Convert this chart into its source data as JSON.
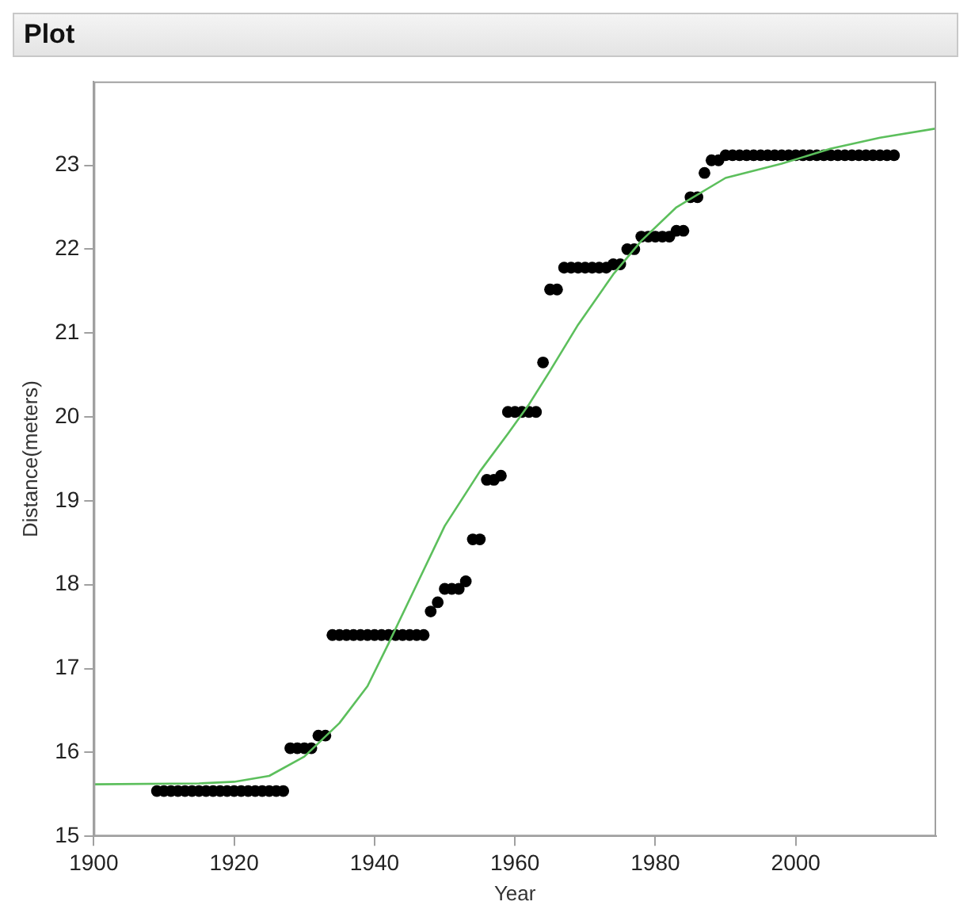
{
  "chart_data": {
    "type": "scatter",
    "title": "Plot",
    "xlabel": "Year",
    "ylabel": "Distance(meters)",
    "xlim": [
      1900,
      2020
    ],
    "xticks": [
      1900,
      1920,
      1940,
      1960,
      1980,
      2000
    ],
    "ylim": [
      15,
      24
    ],
    "yticks": [
      15,
      16,
      17,
      18,
      19,
      20,
      21,
      22,
      23
    ],
    "grid": false,
    "legend": false,
    "series": [
      {
        "type": "scatter",
        "color": "#000000",
        "marker": "circle",
        "x": [
          1909,
          1910,
          1911,
          1912,
          1913,
          1914,
          1915,
          1916,
          1917,
          1918,
          1919,
          1920,
          1921,
          1922,
          1923,
          1924,
          1925,
          1926,
          1927,
          1928,
          1929,
          1930,
          1931,
          1932,
          1933,
          1934,
          1935,
          1936,
          1937,
          1938,
          1939,
          1940,
          1941,
          1942,
          1943,
          1944,
          1945,
          1946,
          1947,
          1948,
          1949,
          1950,
          1951,
          1952,
          1953,
          1954,
          1955,
          1956,
          1957,
          1958,
          1959,
          1960,
          1961,
          1962,
          1963,
          1964,
          1965,
          1966,
          1967,
          1968,
          1969,
          1970,
          1971,
          1972,
          1973,
          1974,
          1975,
          1976,
          1977,
          1978,
          1979,
          1980,
          1981,
          1982,
          1983,
          1984,
          1985,
          1986,
          1987,
          1988,
          1989,
          1990,
          1991,
          1992,
          1993,
          1994,
          1995,
          1996,
          1997,
          1998,
          1999,
          2000,
          2001,
          2002,
          2003,
          2004,
          2005,
          2006,
          2007,
          2008,
          2009,
          2010,
          2011,
          2012,
          2013,
          2014
        ],
        "values": [
          15.54,
          15.54,
          15.54,
          15.54,
          15.54,
          15.54,
          15.54,
          15.54,
          15.54,
          15.54,
          15.54,
          15.54,
          15.54,
          15.54,
          15.54,
          15.54,
          15.54,
          15.54,
          15.54,
          16.05,
          16.05,
          16.05,
          16.05,
          16.2,
          16.2,
          17.4,
          17.4,
          17.4,
          17.4,
          17.4,
          17.4,
          17.4,
          17.4,
          17.4,
          17.4,
          17.4,
          17.4,
          17.4,
          17.4,
          17.68,
          17.79,
          17.95,
          17.95,
          17.95,
          18.04,
          18.54,
          18.54,
          19.25,
          19.25,
          19.3,
          20.06,
          20.06,
          20.06,
          20.06,
          20.06,
          20.65,
          21.52,
          21.52,
          21.78,
          21.78,
          21.78,
          21.78,
          21.78,
          21.78,
          21.78,
          21.82,
          21.82,
          22.0,
          22.0,
          22.15,
          22.15,
          22.15,
          22.15,
          22.15,
          22.22,
          22.22,
          22.62,
          22.62,
          22.91,
          23.06,
          23.06,
          23.12,
          23.12,
          23.12,
          23.12,
          23.12,
          23.12,
          23.12,
          23.12,
          23.12,
          23.12,
          23.12,
          23.12,
          23.12,
          23.12,
          23.12,
          23.12,
          23.12,
          23.12,
          23.12,
          23.12,
          23.12,
          23.12,
          23.12,
          23.12,
          23.12
        ]
      },
      {
        "type": "line",
        "color": "#5cbf5c",
        "marker": "none",
        "line_style": "solid",
        "x": [
          1900,
          1915,
          1920,
          1925,
          1930,
          1935,
          1939,
          1942,
          1946,
          1950,
          1955,
          1959,
          1962,
          1965,
          1969,
          1974,
          1978,
          1983,
          1990,
          1998,
          2005,
          2012,
          2020
        ],
        "values": [
          15.62,
          15.63,
          15.65,
          15.72,
          15.95,
          16.35,
          16.79,
          17.3,
          18.0,
          18.7,
          19.35,
          19.8,
          20.15,
          20.55,
          21.1,
          21.7,
          22.1,
          22.5,
          22.85,
          23.02,
          23.2,
          23.33,
          23.44
        ]
      }
    ]
  }
}
